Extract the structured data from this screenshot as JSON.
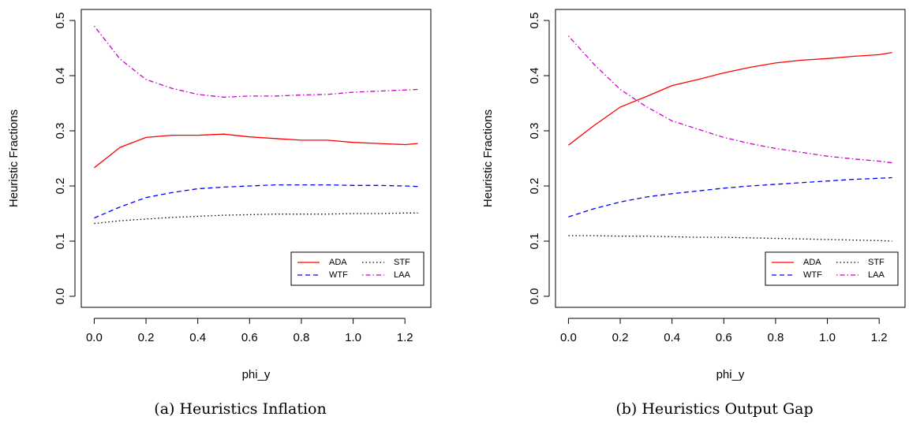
{
  "chart_data": [
    {
      "type": "line",
      "caption": "(a) Heuristics Inflation",
      "xlabel": "phi_y",
      "ylabel": "Heuristic Fractions",
      "x": [
        0,
        0.1,
        0.2,
        0.3,
        0.4,
        0.5,
        0.6,
        0.7,
        0.8,
        0.9,
        1.0,
        1.1,
        1.2,
        1.25
      ],
      "series": [
        {
          "name": "ADA",
          "color": "#ff0000",
          "linestyle": "solid",
          "values": [
            0.233,
            0.27,
            0.288,
            0.292,
            0.292,
            0.294,
            0.289,
            0.286,
            0.283,
            0.283,
            0.279,
            0.277,
            0.275,
            0.277
          ]
        },
        {
          "name": "WTF",
          "color": "#0000ff",
          "linestyle": "dashed",
          "values": [
            0.142,
            0.162,
            0.179,
            0.188,
            0.195,
            0.198,
            0.2,
            0.202,
            0.202,
            0.202,
            0.201,
            0.201,
            0.2,
            0.199
          ]
        },
        {
          "name": "STF",
          "color": "#000000",
          "linestyle": "dotted",
          "values": [
            0.132,
            0.137,
            0.14,
            0.143,
            0.145,
            0.147,
            0.148,
            0.149,
            0.149,
            0.149,
            0.15,
            0.15,
            0.151,
            0.151
          ]
        },
        {
          "name": "LAA",
          "color": "#cc00cc",
          "linestyle": "dotdash",
          "values": [
            0.49,
            0.43,
            0.393,
            0.377,
            0.366,
            0.361,
            0.363,
            0.363,
            0.365,
            0.366,
            0.37,
            0.372,
            0.374,
            0.375
          ]
        }
      ],
      "xlim": [
        -0.05,
        1.3
      ],
      "ylim": [
        -0.02,
        0.52
      ],
      "xticks": [
        {
          "value": 0,
          "label": "0.0"
        },
        0.2,
        0.4,
        0.6,
        0.8,
        {
          "value": 1,
          "label": "1.0"
        },
        1.2
      ],
      "yticks": [
        {
          "value": 0,
          "label": "0.0"
        },
        0.1,
        0.2,
        0.3,
        0.4,
        0.5
      ],
      "legend": "bottom-right"
    },
    {
      "type": "line",
      "caption": "(b) Heuristics Output Gap",
      "xlabel": "phi_y",
      "ylabel": "Heuristic Fractions",
      "x": [
        0,
        0.1,
        0.2,
        0.3,
        0.4,
        0.5,
        0.6,
        0.7,
        0.8,
        0.9,
        1.0,
        1.1,
        1.2,
        1.25
      ],
      "series": [
        {
          "name": "ADA",
          "color": "#ff0000",
          "linestyle": "solid",
          "values": [
            0.274,
            0.31,
            0.343,
            0.362,
            0.382,
            0.393,
            0.405,
            0.415,
            0.423,
            0.428,
            0.431,
            0.435,
            0.438,
            0.442
          ]
        },
        {
          "name": "WTF",
          "color": "#0000ff",
          "linestyle": "dashed",
          "values": [
            0.144,
            0.159,
            0.171,
            0.18,
            0.186,
            0.191,
            0.196,
            0.2,
            0.203,
            0.206,
            0.209,
            0.212,
            0.214,
            0.215
          ]
        },
        {
          "name": "STF",
          "color": "#000000",
          "linestyle": "dotted",
          "values": [
            0.11,
            0.11,
            0.109,
            0.109,
            0.108,
            0.107,
            0.107,
            0.106,
            0.105,
            0.104,
            0.103,
            0.102,
            0.101,
            0.1
          ]
        },
        {
          "name": "LAA",
          "color": "#cc00cc",
          "linestyle": "dotdash",
          "values": [
            0.472,
            0.42,
            0.375,
            0.344,
            0.318,
            0.303,
            0.288,
            0.277,
            0.268,
            0.261,
            0.254,
            0.249,
            0.245,
            0.242
          ]
        }
      ],
      "xlim": [
        -0.05,
        1.3
      ],
      "ylim": [
        -0.02,
        0.52
      ],
      "xticks": [
        {
          "value": 0,
          "label": "0.0"
        },
        0.2,
        0.4,
        0.6,
        0.8,
        {
          "value": 1,
          "label": "1.0"
        },
        1.2
      ],
      "yticks": [
        {
          "value": 0,
          "label": "0.0"
        },
        0.1,
        0.2,
        0.3,
        0.4,
        0.5
      ],
      "legend": "bottom-right"
    }
  ]
}
